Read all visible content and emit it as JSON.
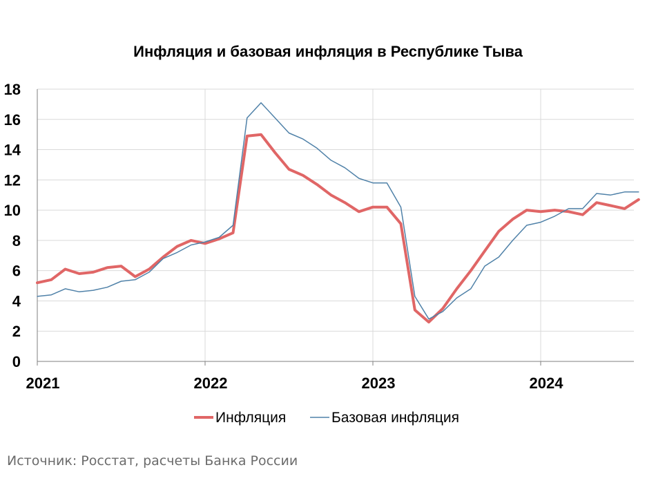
{
  "source_note": "Источник: Росстат, расчеты Банка России",
  "chart_data": {
    "type": "line",
    "title": "Инфляция и базовая инфляция в Республике Тыва",
    "xlabel": "",
    "ylabel": "",
    "ylim": [
      0,
      18
    ],
    "yticks": [
      "0",
      "2",
      "4",
      "6",
      "8",
      "10",
      "12",
      "14",
      "16",
      "18"
    ],
    "year_ticks": [
      "2021",
      "2022",
      "2023",
      "2024"
    ],
    "grid": true,
    "legend_position": "bottom",
    "series": [
      {
        "name": "Инфляция",
        "color": "#e06666",
        "values": [
          5.2,
          5.4,
          6.1,
          5.8,
          5.9,
          6.2,
          6.3,
          5.6,
          6.1,
          6.9,
          7.6,
          8.0,
          7.8,
          8.1,
          8.5,
          14.9,
          15.0,
          13.8,
          12.7,
          12.3,
          11.7,
          11.0,
          10.5,
          9.9,
          10.2,
          10.2,
          9.1,
          3.4,
          2.6,
          3.5,
          4.8,
          6.0,
          7.3,
          8.6,
          9.4,
          10.0,
          9.9,
          10.0,
          9.9,
          9.7,
          10.5,
          10.3,
          10.1,
          10.7
        ]
      },
      {
        "name": "Базовая инфляция",
        "color": "#4f81a8",
        "values": [
          4.3,
          4.4,
          4.8,
          4.6,
          4.7,
          4.9,
          5.3,
          5.4,
          5.9,
          6.8,
          7.2,
          7.7,
          7.9,
          8.2,
          9.0,
          16.1,
          17.1,
          16.1,
          15.1,
          14.7,
          14.1,
          13.3,
          12.8,
          12.1,
          11.8,
          11.8,
          10.2,
          4.3,
          2.8,
          3.3,
          4.2,
          4.8,
          6.3,
          6.9,
          8.0,
          9.0,
          9.2,
          9.6,
          10.1,
          10.1,
          11.1,
          11.0,
          11.2,
          11.2
        ]
      }
    ]
  }
}
